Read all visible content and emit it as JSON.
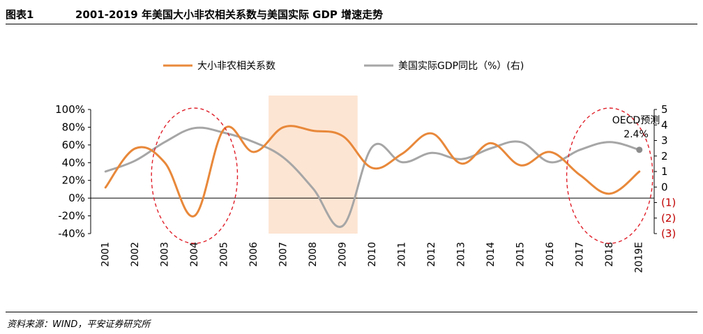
{
  "header": {
    "figure_no": "图表1",
    "title": "2001-2019 年美国大小非农相关系数与美国实际 GDP 增速走势"
  },
  "footer": {
    "source": "资料来源：WIND，平安证券研究所"
  },
  "annotation": {
    "line1": "OECD预测",
    "line2": "2.4%"
  },
  "colors": {
    "series1": "#e8883a",
    "series2": "#a6a6a6",
    "shade": "#fde5d3",
    "circle": "#e0202a",
    "neg_label": "#c00000"
  },
  "chart_data": {
    "type": "line",
    "categories": [
      "2001",
      "2002",
      "2003",
      "2004",
      "2005",
      "2006",
      "2007",
      "2008",
      "2009",
      "2010",
      "2011",
      "2012",
      "2013",
      "2014",
      "2015",
      "2016",
      "2017",
      "2018",
      "2019E"
    ],
    "y_left": {
      "range": [
        -40,
        100
      ],
      "ticks": [
        "-40%",
        "-20%",
        "0%",
        "20%",
        "40%",
        "60%",
        "80%",
        "100%"
      ],
      "values": [
        -40,
        -20,
        0,
        20,
        40,
        60,
        80,
        100
      ]
    },
    "y_right": {
      "range": [
        -3,
        5
      ],
      "ticks": [
        "(3)",
        "(2)",
        "(1)",
        "0",
        "1",
        "2",
        "3",
        "4",
        "5"
      ],
      "values": [
        -3,
        -2,
        -1,
        0,
        1,
        2,
        3,
        4,
        5
      ]
    },
    "shaded_range": [
      "2007",
      "2009"
    ],
    "highlight_circles": [
      [
        "2003",
        "2005"
      ],
      [
        "2017",
        "2019E"
      ]
    ],
    "legend_position": "top",
    "series": [
      {
        "name": "大小非农相关系数",
        "axis": "left",
        "values": [
          12,
          56,
          40,
          -20,
          78,
          52,
          80,
          76,
          70,
          34,
          50,
          73,
          39,
          62,
          37,
          52,
          26,
          5,
          30
        ]
      },
      {
        "name": "美国实际GDP同比（%）(右)",
        "axis": "right",
        "values": [
          1.0,
          1.7,
          2.9,
          3.8,
          3.5,
          2.9,
          1.9,
          -0.1,
          -2.5,
          2.6,
          1.6,
          2.2,
          1.8,
          2.5,
          2.9,
          1.6,
          2.4,
          2.9,
          2.4
        ]
      }
    ]
  }
}
